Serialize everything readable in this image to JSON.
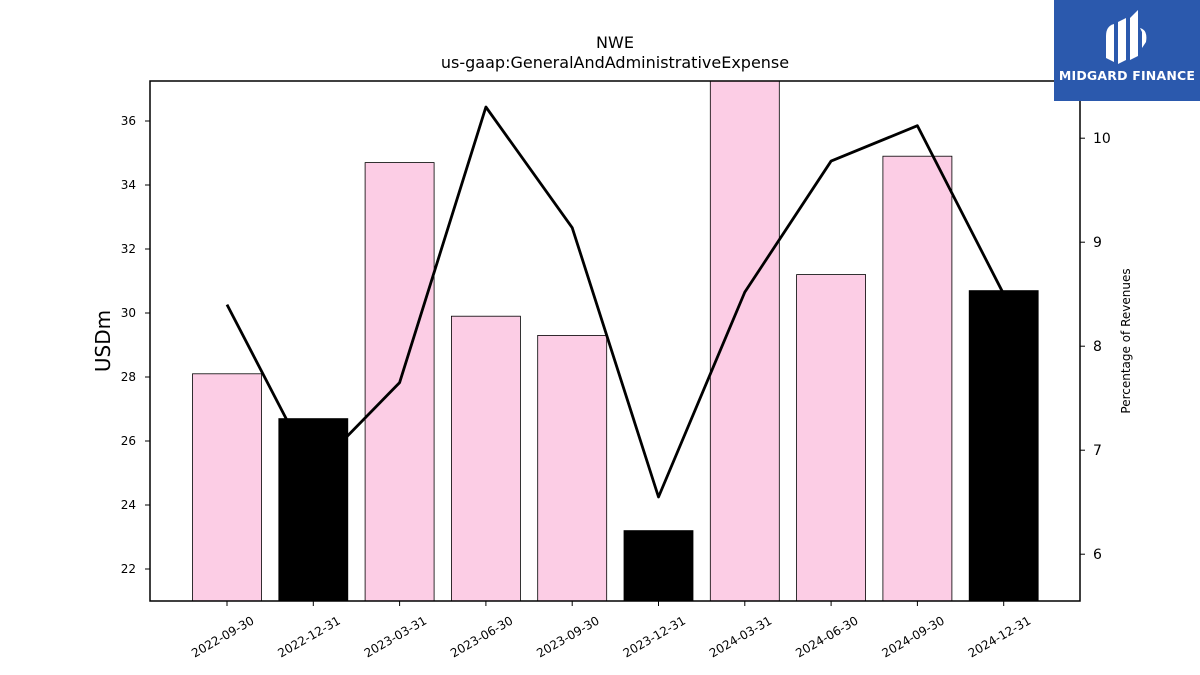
{
  "chart_data": {
    "type": "bar",
    "title": "NWE",
    "subtitle": "us-gaap:GeneralAndAdministrativeExpense",
    "ylabel": "USDm",
    "y2label": "Percentage of Revenues",
    "categories": [
      "2022-09-30",
      "2022-12-31",
      "2023-03-31",
      "2023-06-30",
      "2023-09-30",
      "2023-12-31",
      "2024-03-31",
      "2024-06-30",
      "2024-09-30",
      "2024-12-31"
    ],
    "values": [
      28.1,
      26.7,
      34.7,
      29.9,
      29.3,
      23.2,
      37.3,
      31.2,
      34.9,
      30.7
    ],
    "bar_colors": [
      "#fccde5",
      "#000000",
      "#fccde5",
      "#fccde5",
      "#fccde5",
      "#000000",
      "#fccde5",
      "#fccde5",
      "#fccde5",
      "#000000"
    ],
    "line_series": {
      "values": [
        8.4,
        6.8,
        7.65,
        10.3,
        9.14,
        6.55,
        8.52,
        9.78,
        10.12,
        8.5
      ],
      "color": "#000000"
    },
    "ylim": [
      21,
      37.25
    ],
    "y2lim": [
      5.55,
      10.55
    ],
    "yticks": [
      22,
      24,
      26,
      28,
      30,
      32,
      34,
      36
    ],
    "y2ticks": [
      6,
      7,
      8,
      9,
      10
    ],
    "grid": false
  },
  "logo": {
    "text": "MIDGARD FINANCE",
    "bg": "#2b59ad"
  }
}
